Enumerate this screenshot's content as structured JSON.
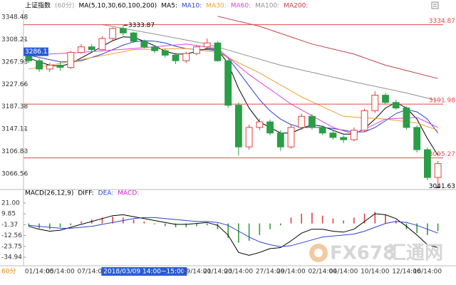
{
  "chart_data": [
    {
      "type": "candlestick",
      "title": "上证指数",
      "subtitle": "(60分)",
      "indicator": "MA(5,10,30,60,100,200)",
      "period_label": "60分",
      "categories": [
        null,
        "01/14:00",
        null,
        "05/14:00",
        null,
        null,
        "07/14:00",
        null,
        null,
        null,
        null,
        "2018/03/09 14:00~15:00",
        null,
        null,
        null,
        null,
        "19/14:00",
        null,
        "21/14:00",
        null,
        "23/14:00",
        null,
        null,
        "27/14:00",
        null,
        "29/14:00",
        null,
        null,
        "02/14:00",
        null,
        "04/14:00",
        null,
        null,
        "10/14:00",
        null,
        null,
        "12/14:00",
        null,
        "16/14:00",
        null
      ],
      "open": [
        3285,
        3270,
        3255,
        3262,
        3258,
        3285,
        3295,
        3290,
        3310,
        3328,
        3320,
        3305,
        3295,
        3288,
        3280,
        3270,
        3283,
        3295,
        3302,
        3270,
        3190,
        3115,
        3150,
        3160,
        3140,
        3115,
        3150,
        3170,
        3150,
        3140,
        3132,
        3128,
        3145,
        3180,
        3208,
        3195,
        3185,
        3150,
        3110,
        3060
      ],
      "high": [
        3292,
        3274,
        3266,
        3268,
        3288,
        3300,
        3300,
        3314,
        3330,
        3333.87,
        3322,
        3308,
        3298,
        3292,
        3284,
        3286,
        3298,
        3310,
        3305,
        3272,
        3195,
        3155,
        3166,
        3164,
        3145,
        3155,
        3175,
        3174,
        3154,
        3145,
        3136,
        3150,
        3184,
        3215,
        3212,
        3200,
        3188,
        3154,
        3114,
        3090
      ],
      "low": [
        3266,
        3250,
        3250,
        3252,
        3255,
        3282,
        3286,
        3288,
        3306,
        3315,
        3302,
        3292,
        3284,
        3276,
        3264,
        3266,
        3280,
        3292,
        3268,
        3185,
        3100,
        3110,
        3145,
        3136,
        3108,
        3112,
        3146,
        3146,
        3136,
        3128,
        3122,
        3125,
        3142,
        3176,
        3192,
        3182,
        3146,
        3105,
        3055,
        3041.63
      ],
      "close": [
        3270,
        3255,
        3262,
        3258,
        3285,
        3295,
        3290,
        3310,
        3328,
        3320,
        3305,
        3295,
        3288,
        3280,
        3270,
        3283,
        3295,
        3302,
        3270,
        3190,
        3115,
        3150,
        3160,
        3140,
        3115,
        3150,
        3170,
        3150,
        3140,
        3132,
        3128,
        3145,
        3180,
        3208,
        3195,
        3185,
        3150,
        3110,
        3060,
        3085
      ],
      "up_color": "#e8403a",
      "down_color": "#2a9d46",
      "series": [
        {
          "name": "MA5:",
          "color": "#000000",
          "values": [
            3275,
            3268,
            3262,
            3260,
            3265,
            3275,
            3285,
            3296,
            3306,
            3313,
            3312,
            3305,
            3297,
            3287,
            3282,
            3282,
            3287,
            3292,
            3290,
            3265,
            3220,
            3185,
            3160,
            3150,
            3140,
            3140,
            3148,
            3155,
            3152,
            3145,
            3138,
            3138,
            3148,
            3165,
            3185,
            3195,
            3185,
            3165,
            3130,
            3100
          ]
        },
        {
          "name": "MA10:",
          "color": "#2b3fd4",
          "values": [
            3280,
            3276,
            3272,
            3268,
            3268,
            3270,
            3276,
            3282,
            3290,
            3298,
            3304,
            3306,
            3305,
            3302,
            3296,
            3292,
            3290,
            3290,
            3288,
            3275,
            3250,
            3225,
            3200,
            3180,
            3165,
            3155,
            3150,
            3150,
            3150,
            3148,
            3145,
            3142,
            3142,
            3150,
            3162,
            3175,
            3182,
            3178,
            3165,
            3140
          ]
        },
        {
          "name": "MA30:",
          "color": "#f0a030",
          "x": [
            0,
            5,
            10,
            15,
            18,
            22,
            26,
            30,
            34,
            37,
            39
          ],
          "values": [
            3255,
            3272,
            3290,
            3292,
            3285,
            3248,
            3205,
            3170,
            3165,
            3158,
            3145
          ]
        },
        {
          "name": "MA60:",
          "color": "#e040e0",
          "x": [
            0,
            5,
            10,
            15,
            18,
            21,
            25,
            29,
            31,
            34,
            37,
            39
          ],
          "values": [
            3280,
            3285,
            3292,
            3300,
            3292,
            3245,
            3192,
            3150,
            3138,
            3165,
            3168,
            3150
          ]
        },
        {
          "name": "MA100:",
          "color": "#909090",
          "x": [
            7,
            12,
            17,
            24,
            31,
            36,
            39
          ],
          "values": [
            3335,
            3318,
            3300,
            3262,
            3232,
            3212,
            3198
          ]
        },
        {
          "name": "MA200:",
          "color": "#c04040",
          "x": [
            18,
            22,
            27,
            31,
            34,
            39
          ],
          "values": [
            3350,
            3332,
            3300,
            3282,
            3262,
            3238
          ]
        }
      ],
      "price_levels": [
        3334.87,
        3191.98,
        3095.27
      ],
      "level_color": "#e84848",
      "high_marker": 3333.87,
      "low_marker": 3041.63,
      "crosshair_index": 11,
      "crosshair_value": 3286.13,
      "ylim": [
        3040.9,
        3361.3
      ],
      "yticks": [
        3348.48,
        3308.21,
        3267.93,
        3227.66,
        3187.38,
        3147.11,
        3106.83,
        3066.56
      ]
    },
    {
      "type": "macd",
      "title": "MACD(26,12,9)",
      "series": [
        {
          "name": "DIFF:",
          "color": "#000000",
          "kind": "line",
          "values": [
            -3,
            -6,
            -8,
            -7,
            -4,
            -1,
            2,
            5,
            8,
            9,
            7,
            5,
            3,
            1,
            -1,
            -1,
            0,
            1,
            -2,
            -12,
            -30,
            -33,
            -30,
            -26,
            -25,
            -18,
            -10,
            -6,
            -6,
            -8,
            -9,
            -6,
            2,
            10,
            9,
            5,
            -3,
            -12,
            -22,
            -25
          ]
        },
        {
          "name": "DEA:",
          "color": "#2b3fd4",
          "kind": "line",
          "values": [
            -2,
            -3,
            -4,
            -5,
            -5,
            -4,
            -3,
            -1,
            1,
            3,
            5,
            6,
            6,
            5,
            4,
            3,
            2,
            2,
            1,
            -2,
            -8,
            -14,
            -19,
            -22,
            -24,
            -23,
            -20,
            -17,
            -14,
            -13,
            -12,
            -11,
            -8,
            -4,
            0,
            2,
            1,
            -2,
            -6,
            -10
          ]
        },
        {
          "name": "MACD:",
          "color": "#d020d0",
          "kind": "bar",
          "up_color": "#e04040",
          "down_color": "#3a9a3a",
          "values": [
            -3,
            -5,
            -6,
            -4,
            -2,
            2,
            4,
            6,
            7,
            6,
            4,
            2,
            -1,
            -3,
            -4,
            -4,
            -3,
            -2,
            -6,
            -15,
            -20,
            -18,
            -12,
            -6,
            -2,
            6,
            10,
            11,
            8,
            5,
            3,
            6,
            10,
            12,
            9,
            3,
            -6,
            -10,
            -12,
            -8
          ]
        }
      ],
      "ylim": [
        -43,
        28.4
      ],
      "yticks": [
        {
          "value": 21,
          "label": "21.00"
        },
        9.85,
        -1.37,
        -12.56,
        -23.75,
        -34.94
      ]
    }
  ],
  "watermark": {
    "brand": "FX678",
    "name": "汇通网"
  }
}
